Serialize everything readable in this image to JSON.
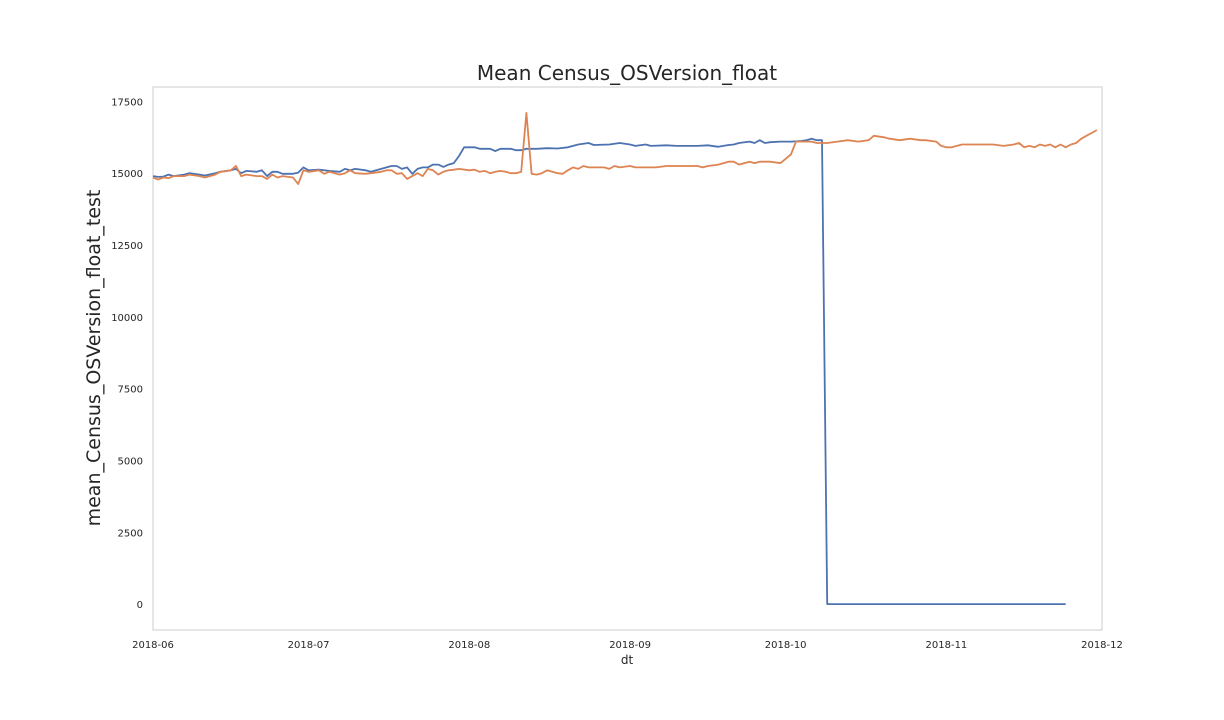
{
  "chart_data": {
    "type": "line",
    "title": "Mean Census_OSVersion_float",
    "xlabel": "dt",
    "ylabel": "mean_Census_OSVersion_float_test",
    "xlim": [
      "2018-06-01",
      "2018-12-01"
    ],
    "ylim": [
      -900,
      18000
    ],
    "x_ticks": [
      "2018-06",
      "2018-07",
      "2018-08",
      "2018-09",
      "2018-10",
      "2018-11",
      "2018-12"
    ],
    "y_ticks": [
      0,
      2500,
      5000,
      7500,
      10000,
      12500,
      15000,
      17500
    ],
    "grid": false,
    "series": [
      {
        "color": "#4c72b0",
        "points": [
          [
            "2018-06-01",
            14900
          ],
          [
            "2018-06-02",
            14870
          ],
          [
            "2018-06-03",
            14880
          ],
          [
            "2018-06-04",
            14950
          ],
          [
            "2018-06-05",
            14900
          ],
          [
            "2018-06-07",
            14950
          ],
          [
            "2018-06-08",
            15000
          ],
          [
            "2018-06-10",
            14950
          ],
          [
            "2018-06-11",
            14920
          ],
          [
            "2018-06-13",
            15000
          ],
          [
            "2018-06-14",
            15050
          ],
          [
            "2018-06-16",
            15100
          ],
          [
            "2018-06-17",
            15150
          ],
          [
            "2018-06-18",
            15000
          ],
          [
            "2018-06-19",
            15080
          ],
          [
            "2018-06-21",
            15050
          ],
          [
            "2018-06-22",
            15100
          ],
          [
            "2018-06-23",
            14900
          ],
          [
            "2018-06-24",
            15050
          ],
          [
            "2018-06-25",
            15050
          ],
          [
            "2018-06-26",
            14980
          ],
          [
            "2018-06-28",
            14980
          ],
          [
            "2018-06-29",
            15020
          ],
          [
            "2018-06-30",
            15200
          ],
          [
            "2018-07-01",
            15100
          ],
          [
            "2018-07-03",
            15120
          ],
          [
            "2018-07-05",
            15080
          ],
          [
            "2018-07-07",
            15050
          ],
          [
            "2018-07-08",
            15150
          ],
          [
            "2018-07-09",
            15100
          ],
          [
            "2018-07-10",
            15150
          ],
          [
            "2018-07-12",
            15100
          ],
          [
            "2018-07-13",
            15050
          ],
          [
            "2018-07-15",
            15150
          ],
          [
            "2018-07-16",
            15200
          ],
          [
            "2018-07-17",
            15250
          ],
          [
            "2018-07-18",
            15250
          ],
          [
            "2018-07-19",
            15150
          ],
          [
            "2018-07-20",
            15200
          ],
          [
            "2018-07-21",
            14980
          ],
          [
            "2018-07-22",
            15150
          ],
          [
            "2018-07-23",
            15200
          ],
          [
            "2018-07-24",
            15200
          ],
          [
            "2018-07-25",
            15300
          ],
          [
            "2018-07-26",
            15300
          ],
          [
            "2018-07-27",
            15220
          ],
          [
            "2018-07-28",
            15300
          ],
          [
            "2018-07-29",
            15350
          ],
          [
            "2018-07-30",
            15600
          ],
          [
            "2018-07-31",
            15900
          ],
          [
            "2018-08-01",
            15900
          ],
          [
            "2018-08-02",
            15900
          ],
          [
            "2018-08-03",
            15850
          ],
          [
            "2018-08-05",
            15850
          ],
          [
            "2018-08-06",
            15770
          ],
          [
            "2018-08-07",
            15850
          ],
          [
            "2018-08-09",
            15850
          ],
          [
            "2018-08-10",
            15800
          ],
          [
            "2018-08-11",
            15800
          ],
          [
            "2018-08-12",
            15850
          ],
          [
            "2018-08-14",
            15850
          ],
          [
            "2018-08-16",
            15870
          ],
          [
            "2018-08-18",
            15860
          ],
          [
            "2018-08-20",
            15900
          ],
          [
            "2018-08-22",
            16000
          ],
          [
            "2018-08-24",
            16050
          ],
          [
            "2018-08-25",
            15980
          ],
          [
            "2018-08-28",
            16000
          ],
          [
            "2018-08-30",
            16050
          ],
          [
            "2018-09-01",
            16000
          ],
          [
            "2018-09-02",
            15950
          ],
          [
            "2018-09-04",
            16000
          ],
          [
            "2018-09-05",
            15950
          ],
          [
            "2018-09-08",
            15970
          ],
          [
            "2018-09-10",
            15950
          ],
          [
            "2018-09-12",
            15950
          ],
          [
            "2018-09-14",
            15950
          ],
          [
            "2018-09-16",
            15970
          ],
          [
            "2018-09-18",
            15920
          ],
          [
            "2018-09-19",
            15950
          ],
          [
            "2018-09-20",
            15980
          ],
          [
            "2018-09-21",
            16000
          ],
          [
            "2018-09-22",
            16050
          ],
          [
            "2018-09-24",
            16100
          ],
          [
            "2018-09-25",
            16050
          ],
          [
            "2018-09-26",
            16150
          ],
          [
            "2018-09-27",
            16050
          ],
          [
            "2018-09-28",
            16080
          ],
          [
            "2018-09-30",
            16100
          ],
          [
            "2018-10-02",
            16100
          ],
          [
            "2018-10-04",
            16120
          ],
          [
            "2018-10-05",
            16150
          ],
          [
            "2018-10-06",
            16200
          ],
          [
            "2018-10-07",
            16150
          ],
          [
            "2018-10-08",
            16150
          ],
          [
            "2018-10-09",
            0
          ],
          [
            "2018-11-24",
            0
          ]
        ]
      },
      {
        "color": "#dd8452",
        "points": [
          [
            "2018-06-01",
            14850
          ],
          [
            "2018-06-02",
            14780
          ],
          [
            "2018-06-03",
            14850
          ],
          [
            "2018-06-04",
            14830
          ],
          [
            "2018-06-05",
            14900
          ],
          [
            "2018-06-07",
            14900
          ],
          [
            "2018-06-08",
            14950
          ],
          [
            "2018-06-10",
            14900
          ],
          [
            "2018-06-11",
            14850
          ],
          [
            "2018-06-13",
            14950
          ],
          [
            "2018-06-14",
            15050
          ],
          [
            "2018-06-16",
            15100
          ],
          [
            "2018-06-17",
            15250
          ],
          [
            "2018-06-18",
            14900
          ],
          [
            "2018-06-19",
            14950
          ],
          [
            "2018-06-21",
            14900
          ],
          [
            "2018-06-22",
            14900
          ],
          [
            "2018-06-23",
            14800
          ],
          [
            "2018-06-24",
            14950
          ],
          [
            "2018-06-25",
            14850
          ],
          [
            "2018-06-26",
            14900
          ],
          [
            "2018-06-28",
            14850
          ],
          [
            "2018-06-29",
            14620
          ],
          [
            "2018-06-30",
            15100
          ],
          [
            "2018-07-01",
            15050
          ],
          [
            "2018-07-03",
            15100
          ],
          [
            "2018-07-04",
            14980
          ],
          [
            "2018-07-05",
            15050
          ],
          [
            "2018-07-07",
            14950
          ],
          [
            "2018-07-08",
            15000
          ],
          [
            "2018-07-09",
            15100
          ],
          [
            "2018-07-10",
            15000
          ],
          [
            "2018-07-12",
            14980
          ],
          [
            "2018-07-13",
            15000
          ],
          [
            "2018-07-15",
            15050
          ],
          [
            "2018-07-16",
            15100
          ],
          [
            "2018-07-17",
            15100
          ],
          [
            "2018-07-18",
            14980
          ],
          [
            "2018-07-19",
            15000
          ],
          [
            "2018-07-20",
            14800
          ],
          [
            "2018-07-21",
            14900
          ],
          [
            "2018-07-22",
            15000
          ],
          [
            "2018-07-23",
            14900
          ],
          [
            "2018-07-24",
            15150
          ],
          [
            "2018-07-25",
            15100
          ],
          [
            "2018-07-26",
            14950
          ],
          [
            "2018-07-27",
            15050
          ],
          [
            "2018-07-28",
            15100
          ],
          [
            "2018-07-29",
            15120
          ],
          [
            "2018-07-30",
            15150
          ],
          [
            "2018-08-01",
            15100
          ],
          [
            "2018-08-02",
            15120
          ],
          [
            "2018-08-03",
            15050
          ],
          [
            "2018-08-04",
            15080
          ],
          [
            "2018-08-05",
            15000
          ],
          [
            "2018-08-06",
            15050
          ],
          [
            "2018-08-07",
            15080
          ],
          [
            "2018-08-08",
            15050
          ],
          [
            "2018-08-09",
            15000
          ],
          [
            "2018-08-10",
            15000
          ],
          [
            "2018-08-11",
            15050
          ],
          [
            "2018-08-12",
            17100
          ],
          [
            "2018-08-13",
            14980
          ],
          [
            "2018-08-14",
            14950
          ],
          [
            "2018-08-15",
            15000
          ],
          [
            "2018-08-16",
            15100
          ],
          [
            "2018-08-17",
            15050
          ],
          [
            "2018-08-18",
            15000
          ],
          [
            "2018-08-19",
            14980
          ],
          [
            "2018-08-20",
            15100
          ],
          [
            "2018-08-21",
            15200
          ],
          [
            "2018-08-22",
            15150
          ],
          [
            "2018-08-23",
            15250
          ],
          [
            "2018-08-24",
            15200
          ],
          [
            "2018-08-26",
            15200
          ],
          [
            "2018-08-27",
            15200
          ],
          [
            "2018-08-28",
            15150
          ],
          [
            "2018-08-29",
            15250
          ],
          [
            "2018-08-30",
            15200
          ],
          [
            "2018-09-01",
            15250
          ],
          [
            "2018-09-02",
            15200
          ],
          [
            "2018-09-04",
            15200
          ],
          [
            "2018-09-06",
            15200
          ],
          [
            "2018-09-08",
            15250
          ],
          [
            "2018-09-10",
            15250
          ],
          [
            "2018-09-12",
            15250
          ],
          [
            "2018-09-14",
            15250
          ],
          [
            "2018-09-15",
            15200
          ],
          [
            "2018-09-16",
            15250
          ],
          [
            "2018-09-18",
            15300
          ],
          [
            "2018-09-20",
            15400
          ],
          [
            "2018-09-21",
            15400
          ],
          [
            "2018-09-22",
            15300
          ],
          [
            "2018-09-24",
            15400
          ],
          [
            "2018-09-25",
            15350
          ],
          [
            "2018-09-26",
            15400
          ],
          [
            "2018-09-28",
            15400
          ],
          [
            "2018-09-30",
            15350
          ],
          [
            "2018-10-01",
            15500
          ],
          [
            "2018-10-02",
            15650
          ],
          [
            "2018-10-03",
            16100
          ],
          [
            "2018-10-05",
            16100
          ],
          [
            "2018-10-06",
            16100
          ],
          [
            "2018-10-07",
            16050
          ],
          [
            "2018-10-09",
            16050
          ],
          [
            "2018-10-11",
            16100
          ],
          [
            "2018-10-13",
            16150
          ],
          [
            "2018-10-15",
            16100
          ],
          [
            "2018-10-17",
            16150
          ],
          [
            "2018-10-18",
            16300
          ],
          [
            "2018-10-20",
            16250
          ],
          [
            "2018-10-21",
            16200
          ],
          [
            "2018-10-23",
            16150
          ],
          [
            "2018-10-25",
            16200
          ],
          [
            "2018-10-27",
            16150
          ],
          [
            "2018-10-28",
            16150
          ],
          [
            "2018-10-30",
            16100
          ],
          [
            "2018-10-31",
            15950
          ],
          [
            "2018-11-01",
            15900
          ],
          [
            "2018-11-02",
            15900
          ],
          [
            "2018-11-04",
            16000
          ],
          [
            "2018-11-06",
            16000
          ],
          [
            "2018-11-08",
            16000
          ],
          [
            "2018-11-10",
            16000
          ],
          [
            "2018-11-12",
            15950
          ],
          [
            "2018-11-14",
            16000
          ],
          [
            "2018-11-15",
            16050
          ],
          [
            "2018-11-16",
            15900
          ],
          [
            "2018-11-17",
            15950
          ],
          [
            "2018-11-18",
            15900
          ],
          [
            "2018-11-19",
            16000
          ],
          [
            "2018-11-20",
            15950
          ],
          [
            "2018-11-21",
            16000
          ],
          [
            "2018-11-22",
            15900
          ],
          [
            "2018-11-23",
            16000
          ],
          [
            "2018-11-24",
            15900
          ],
          [
            "2018-11-25",
            16000
          ],
          [
            "2018-11-26",
            16050
          ],
          [
            "2018-11-27",
            16200
          ],
          [
            "2018-11-28",
            16300
          ],
          [
            "2018-11-29",
            16400
          ],
          [
            "2018-11-30",
            16500
          ]
        ]
      }
    ]
  }
}
